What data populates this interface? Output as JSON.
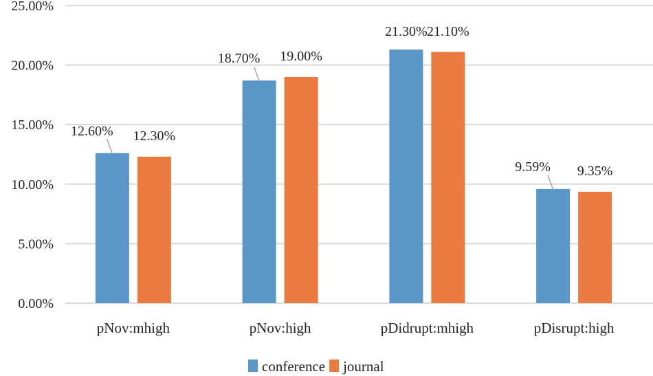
{
  "chart_data": {
    "type": "bar",
    "title": "",
    "xlabel": "",
    "ylabel": "",
    "categories": [
      "pNov:mhigh",
      "pNov:high",
      "pDidrupt:mhigh",
      "pDisrupt:high"
    ],
    "series": [
      {
        "name": "conference",
        "values": [
          12.6,
          18.7,
          21.3,
          9.59
        ],
        "labels": [
          "12.60%",
          "18.70%",
          "21.30%",
          "9.59%"
        ],
        "color": "#5B96C9"
      },
      {
        "name": "journal",
        "values": [
          12.3,
          19.0,
          21.1,
          9.35
        ],
        "labels": [
          "12.30%",
          "19.00%",
          "21.10%",
          "9.35%"
        ],
        "color": "#E97B40"
      }
    ],
    "ylim": [
      0,
      25
    ],
    "yticks": [
      "0.00%",
      "5.00%",
      "10.00%",
      "15.00%",
      "20.00%",
      "25.00%"
    ],
    "grid": true,
    "legend": "bottom",
    "gridColor": "#D9D9D9"
  }
}
